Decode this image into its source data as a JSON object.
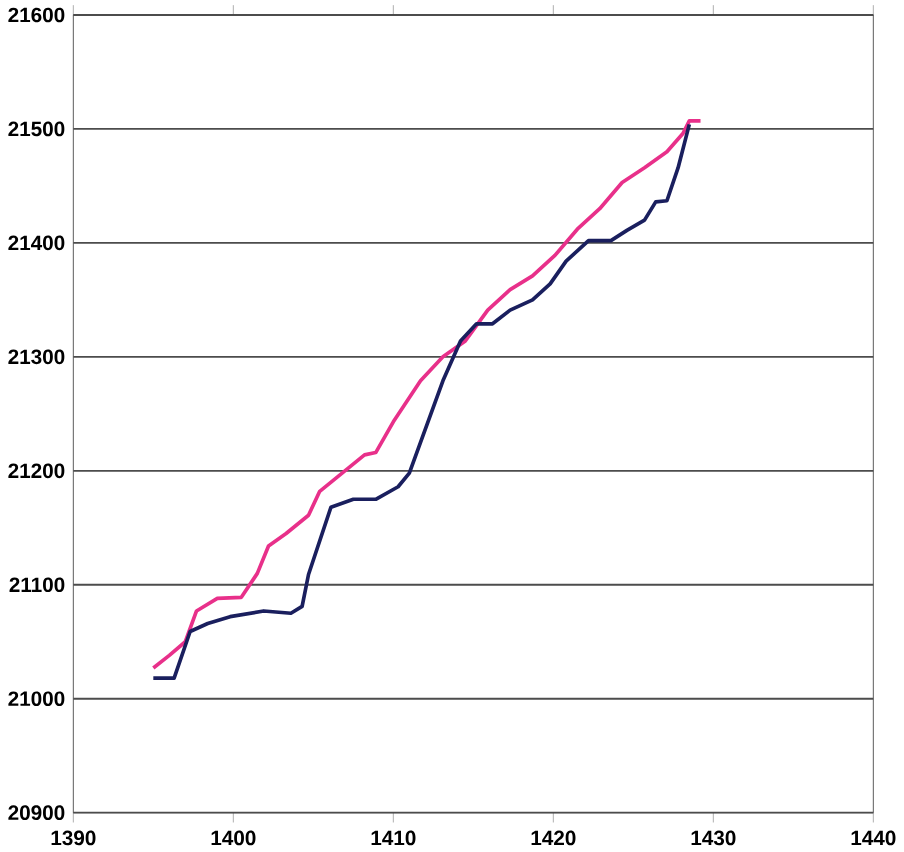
{
  "chart_data": {
    "type": "line",
    "xlim": [
      1390,
      1440
    ],
    "ylim": [
      20900,
      21600
    ],
    "xticks": [
      1390,
      1400,
      1410,
      1420,
      1430,
      1440
    ],
    "yticks": [
      20900,
      21000,
      21100,
      21200,
      21300,
      21400,
      21500,
      21600
    ],
    "grid": "y",
    "series": [
      {
        "color": "#e8308a",
        "x": [
          1395,
          1396,
          1397,
          1397.7,
          1399,
          1400.5,
          1401.5,
          1402.2,
          1403.3,
          1404.7,
          1405.4,
          1406.8,
          1408.2,
          1408.9,
          1410,
          1411.7,
          1413.1,
          1414.5,
          1415.9,
          1417.3,
          1418.7,
          1420.1,
          1421.5,
          1422.9,
          1424.3,
          1425.7,
          1427.1,
          1428.1,
          1428.5,
          1429.2
        ],
        "values": [
          21027,
          21038,
          21050,
          21077,
          21088,
          21089,
          21110,
          21134,
          21145,
          21161,
          21182,
          21198,
          21214,
          21216,
          21243,
          21279,
          21300,
          21314,
          21341,
          21359,
          21371,
          21389,
          21412,
          21430,
          21453,
          21466,
          21480,
          21496,
          21507,
          21507
        ]
      },
      {
        "color": "#1a1f5e",
        "x": [
          1395,
          1396.3,
          1397.3,
          1398.4,
          1399.8,
          1401.9,
          1403.6,
          1404.3,
          1404.7,
          1406.1,
          1407.5,
          1408.9,
          1410.3,
          1411,
          1411.7,
          1413.1,
          1414.2,
          1415.2,
          1416.2,
          1417.3,
          1418.7,
          1419.8,
          1420.8,
          1422.2,
          1423.6,
          1424.6,
          1425.7,
          1426.4,
          1427.1,
          1427.8,
          1428.5
        ],
        "values": [
          21018,
          21018,
          21059,
          21066,
          21072,
          21077,
          21075,
          21081,
          21109,
          21168,
          21175,
          21175,
          21186,
          21198,
          21225,
          21279,
          21314,
          21329,
          21329,
          21341,
          21350,
          21364,
          21384,
          21402,
          21402,
          21411,
          21420,
          21436,
          21437,
          21466,
          21504
        ]
      }
    ]
  }
}
